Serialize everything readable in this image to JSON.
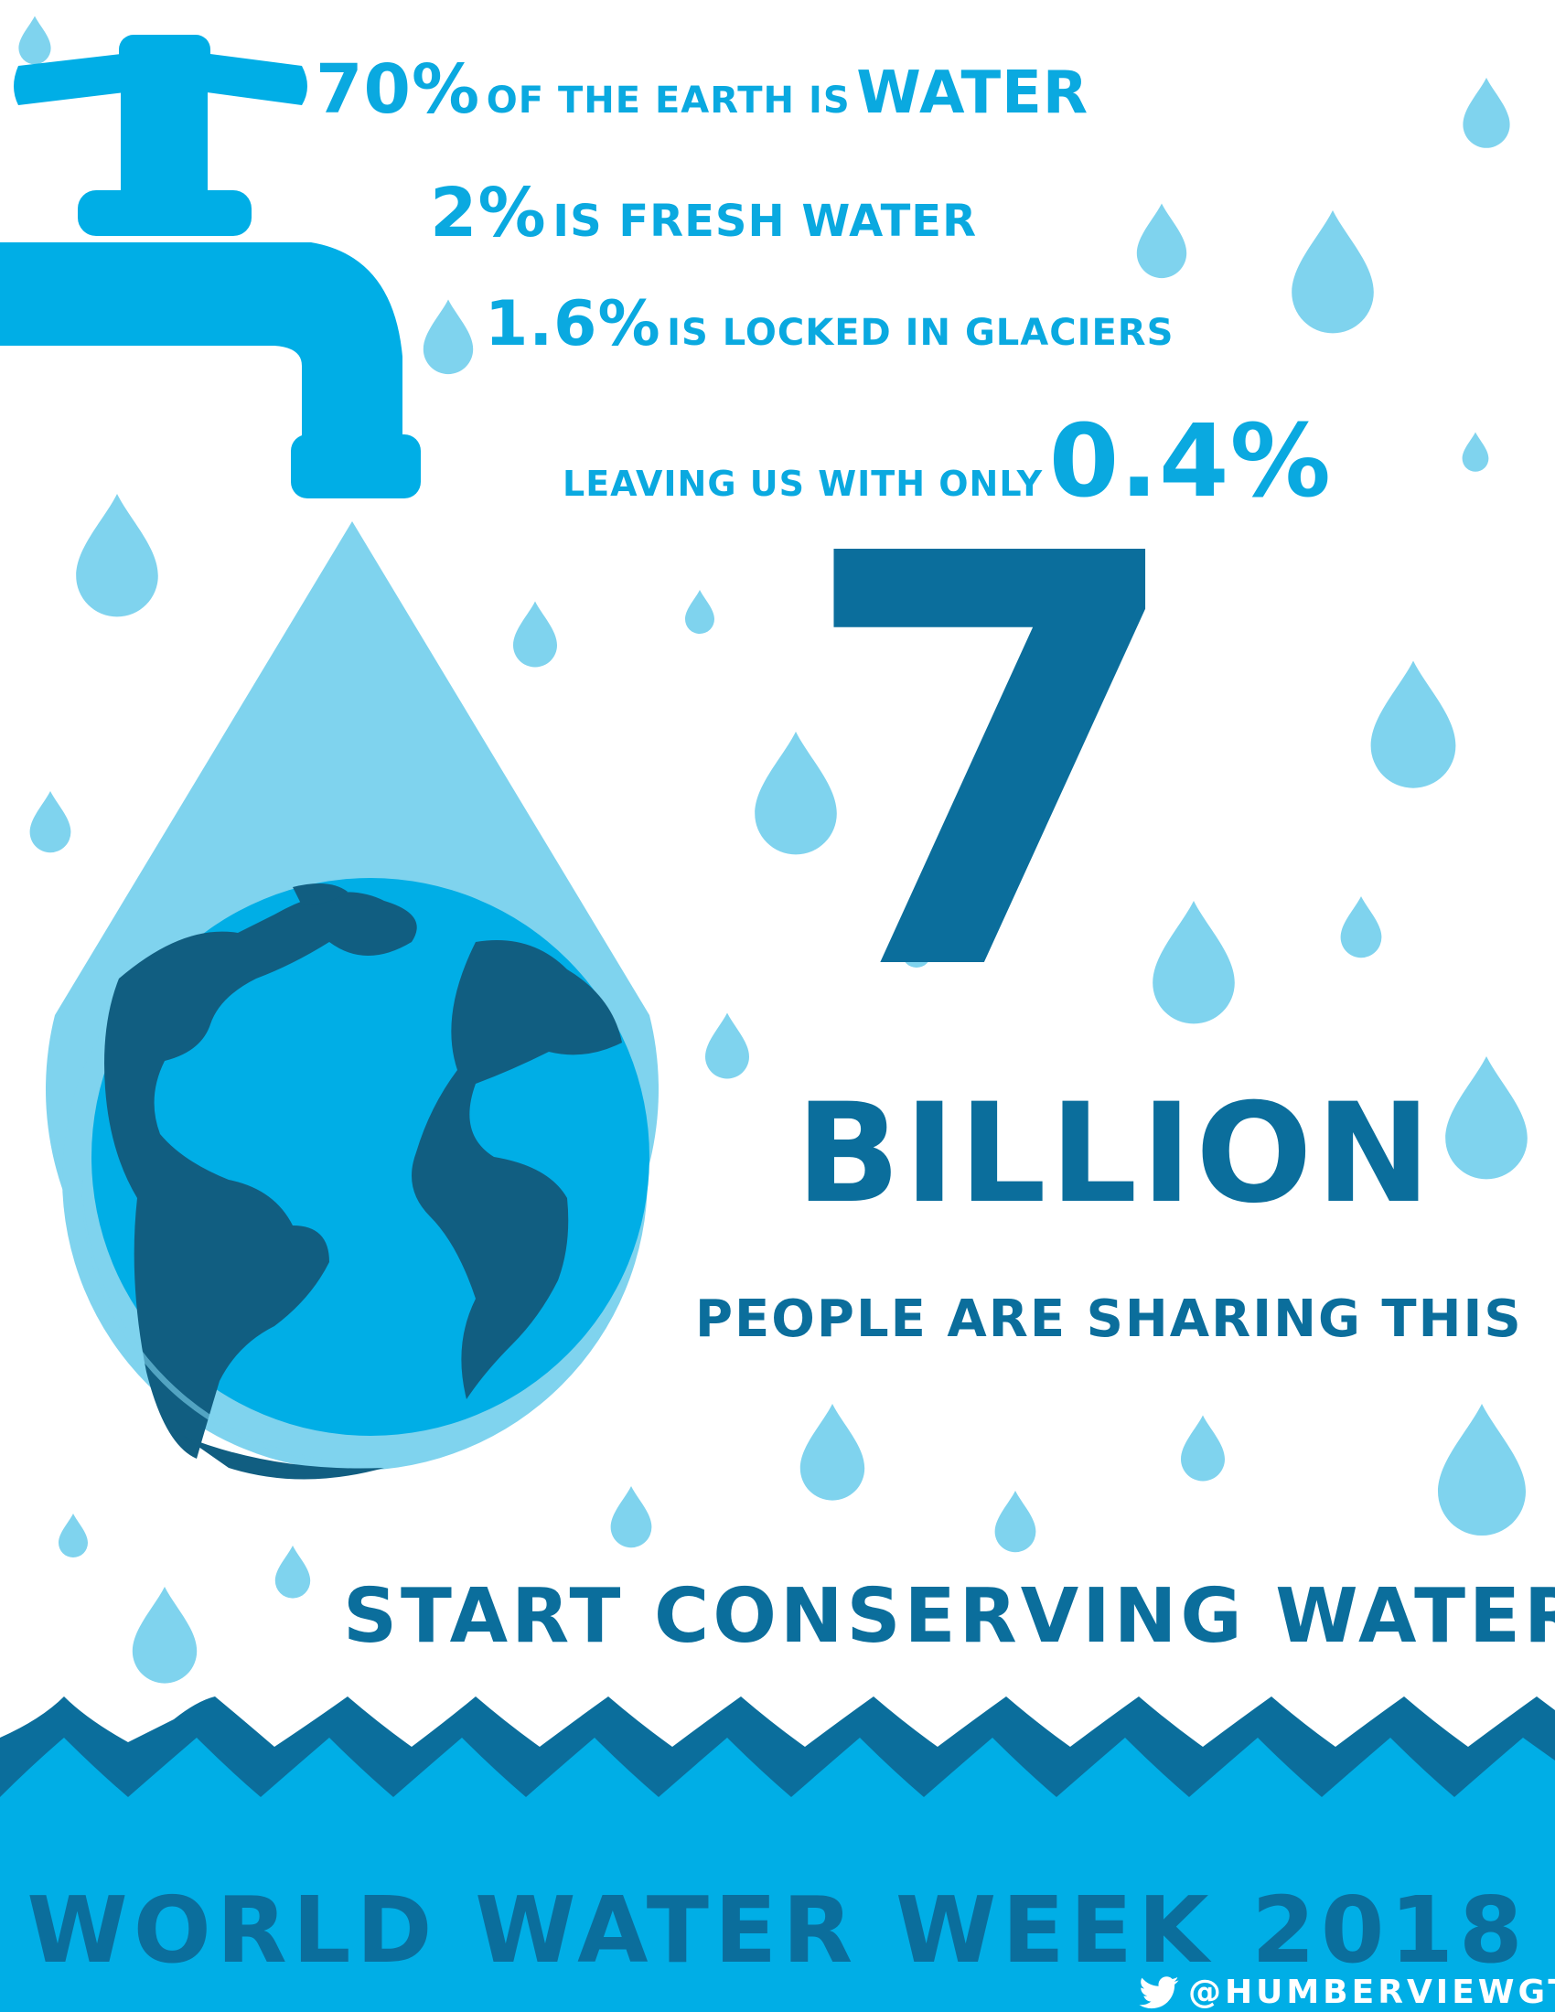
{
  "facts": [
    {
      "value": "70%",
      "text": "OF THE EARTH IS",
      "tail": "WATER"
    },
    {
      "value": "2%",
      "text": "IS FRESH WATER"
    },
    {
      "value": "1.6%",
      "text": "IS LOCKED IN GLACIERS"
    },
    {
      "text": "LEAVING US WITH ONLY",
      "value": "0.4%"
    }
  ],
  "population": {
    "number": "7",
    "unit": "BILLION",
    "caption": "PEOPLE ARE SHARING THIS"
  },
  "call_to_action": "START CONSERVING WATER.",
  "footer": {
    "title": "WORLD WATER WEEK 2018",
    "handle": "@HUMBERVIEWGTAC",
    "icon": "twitter-bird-icon"
  },
  "colors": {
    "light_blue": "#7fd3ee",
    "bright_blue": "#00aee6",
    "dark_blue": "#0b6e9c",
    "earth_land": "#115e81"
  }
}
